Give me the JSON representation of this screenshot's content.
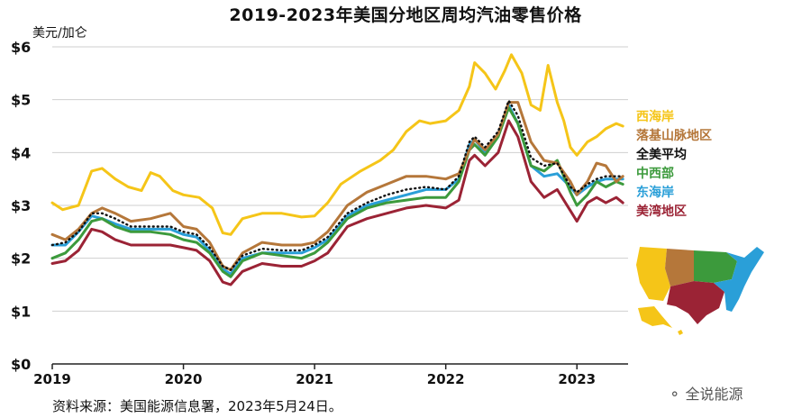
{
  "header": {
    "title": "2019-2023年美国分地区周均汽油零售价格"
  },
  "footer": {
    "source": "资料来源：美国能源信息署，2023年5月24日。",
    "watermark": "全说能源"
  },
  "colors": {
    "west_coast": "#f5c518",
    "rocky_mountain": "#b5773a",
    "us_average": "#111111",
    "midwest": "#3c9a3c",
    "east_coast": "#2a9fd8",
    "gulf_coast": "#9b2335"
  },
  "chart_data": {
    "type": "line",
    "title": "2019-2023年美国分地区周均汽油零售价格",
    "ylabel": "美元/加仑",
    "xlabel": "",
    "ylim": [
      0,
      6
    ],
    "xlim": [
      2019.0,
      2023.39
    ],
    "y_ticks": [
      "$0",
      "$1",
      "$2",
      "$3",
      "$4",
      "$5",
      "$6"
    ],
    "x_ticks": [
      "2019",
      "2020",
      "2021",
      "2022",
      "2023"
    ],
    "grid": "horizontal",
    "legend_position": "right",
    "series": [
      {
        "name": "西海岸",
        "color": "#f5c518",
        "dash": "solid",
        "x": [
          2019.0,
          2019.08,
          2019.2,
          2019.3,
          2019.38,
          2019.48,
          2019.58,
          2019.68,
          2019.75,
          2019.82,
          2019.92,
          2020.0,
          2020.12,
          2020.22,
          2020.3,
          2020.36,
          2020.45,
          2020.6,
          2020.75,
          2020.9,
          2021.0,
          2021.1,
          2021.2,
          2021.35,
          2021.5,
          2021.6,
          2021.7,
          2021.8,
          2021.88,
          2022.0,
          2022.1,
          2022.18,
          2022.22,
          2022.3,
          2022.38,
          2022.45,
          2022.5,
          2022.58,
          2022.65,
          2022.72,
          2022.78,
          2022.85,
          2022.9,
          2022.95,
          2023.0,
          2023.08,
          2023.15,
          2023.22,
          2023.3,
          2023.35
        ],
        "y": [
          3.05,
          2.92,
          3.0,
          3.65,
          3.7,
          3.5,
          3.35,
          3.28,
          3.62,
          3.55,
          3.28,
          3.2,
          3.15,
          2.95,
          2.48,
          2.45,
          2.75,
          2.85,
          2.85,
          2.78,
          2.8,
          3.05,
          3.4,
          3.65,
          3.85,
          4.05,
          4.4,
          4.6,
          4.55,
          4.6,
          4.8,
          5.25,
          5.7,
          5.5,
          5.2,
          5.55,
          5.85,
          5.5,
          4.9,
          4.8,
          5.65,
          4.95,
          4.6,
          4.1,
          3.95,
          4.2,
          4.3,
          4.45,
          4.55,
          4.5
        ]
      },
      {
        "name": "落基山脉地区",
        "color": "#b5773a",
        "dash": "solid",
        "x": [
          2019.0,
          2019.1,
          2019.2,
          2019.3,
          2019.38,
          2019.48,
          2019.6,
          2019.75,
          2019.9,
          2020.0,
          2020.1,
          2020.2,
          2020.3,
          2020.36,
          2020.45,
          2020.6,
          2020.75,
          2020.9,
          2021.0,
          2021.1,
          2021.25,
          2021.4,
          2021.55,
          2021.7,
          2021.85,
          2022.0,
          2022.1,
          2022.18,
          2022.22,
          2022.3,
          2022.4,
          2022.48,
          2022.55,
          2022.65,
          2022.75,
          2022.85,
          2022.95,
          2023.0,
          2023.08,
          2023.15,
          2023.22,
          2023.3,
          2023.35
        ],
        "y": [
          2.45,
          2.35,
          2.55,
          2.85,
          2.95,
          2.85,
          2.7,
          2.75,
          2.85,
          2.6,
          2.55,
          2.3,
          1.85,
          1.78,
          2.1,
          2.3,
          2.25,
          2.25,
          2.3,
          2.5,
          3.0,
          3.25,
          3.4,
          3.55,
          3.55,
          3.5,
          3.6,
          4.05,
          4.25,
          4.05,
          4.35,
          4.95,
          4.95,
          4.2,
          3.85,
          3.8,
          3.45,
          3.2,
          3.45,
          3.8,
          3.75,
          3.45,
          3.55
        ]
      },
      {
        "name": "全美平均",
        "color": "#111111",
        "dash": "dotted",
        "x": [
          2019.0,
          2019.1,
          2019.2,
          2019.3,
          2019.38,
          2019.48,
          2019.6,
          2019.75,
          2019.9,
          2020.0,
          2020.1,
          2020.2,
          2020.3,
          2020.36,
          2020.45,
          2020.6,
          2020.75,
          2020.9,
          2021.0,
          2021.1,
          2021.25,
          2021.4,
          2021.55,
          2021.7,
          2021.85,
          2022.0,
          2022.1,
          2022.18,
          2022.22,
          2022.3,
          2022.4,
          2022.48,
          2022.55,
          2022.65,
          2022.75,
          2022.85,
          2022.95,
          2023.0,
          2023.08,
          2023.15,
          2023.22,
          2023.3,
          2023.35
        ],
        "y": [
          2.25,
          2.3,
          2.5,
          2.85,
          2.85,
          2.75,
          2.6,
          2.6,
          2.6,
          2.5,
          2.45,
          2.2,
          1.85,
          1.78,
          2.05,
          2.18,
          2.15,
          2.15,
          2.25,
          2.4,
          2.85,
          3.05,
          3.2,
          3.3,
          3.35,
          3.3,
          3.55,
          4.2,
          4.3,
          4.1,
          4.4,
          4.98,
          4.7,
          3.9,
          3.75,
          3.8,
          3.35,
          3.25,
          3.4,
          3.5,
          3.55,
          3.55,
          3.55
        ]
      },
      {
        "name": "中西部",
        "color": "#3c9a3c",
        "dash": "solid",
        "x": [
          2019.0,
          2019.1,
          2019.2,
          2019.3,
          2019.38,
          2019.48,
          2019.6,
          2019.75,
          2019.9,
          2020.0,
          2020.1,
          2020.2,
          2020.3,
          2020.36,
          2020.45,
          2020.6,
          2020.75,
          2020.9,
          2021.0,
          2021.1,
          2021.25,
          2021.4,
          2021.55,
          2021.7,
          2021.85,
          2022.0,
          2022.1,
          2022.18,
          2022.22,
          2022.3,
          2022.4,
          2022.48,
          2022.55,
          2022.65,
          2022.75,
          2022.85,
          2022.95,
          2023.0,
          2023.08,
          2023.15,
          2023.22,
          2023.3,
          2023.35
        ],
        "y": [
          2.0,
          2.1,
          2.35,
          2.7,
          2.75,
          2.6,
          2.5,
          2.5,
          2.45,
          2.35,
          2.3,
          2.1,
          1.75,
          1.65,
          1.95,
          2.1,
          2.05,
          2.0,
          2.1,
          2.3,
          2.75,
          2.95,
          3.05,
          3.1,
          3.15,
          3.15,
          3.45,
          4.05,
          4.15,
          3.95,
          4.3,
          4.85,
          4.55,
          3.75,
          3.65,
          3.85,
          3.25,
          3.0,
          3.2,
          3.45,
          3.35,
          3.45,
          3.4
        ]
      },
      {
        "name": "东海岸",
        "color": "#2a9fd8",
        "dash": "solid",
        "x": [
          2019.0,
          2019.1,
          2019.2,
          2019.3,
          2019.38,
          2019.48,
          2019.6,
          2019.75,
          2019.9,
          2020.0,
          2020.1,
          2020.2,
          2020.3,
          2020.36,
          2020.45,
          2020.6,
          2020.75,
          2020.9,
          2021.0,
          2021.1,
          2021.25,
          2021.4,
          2021.55,
          2021.7,
          2021.85,
          2022.0,
          2022.1,
          2022.18,
          2022.22,
          2022.3,
          2022.4,
          2022.48,
          2022.55,
          2022.65,
          2022.75,
          2022.85,
          2022.95,
          2023.0,
          2023.08,
          2023.15,
          2023.22,
          2023.3,
          2023.35
        ],
        "y": [
          2.25,
          2.25,
          2.5,
          2.8,
          2.75,
          2.65,
          2.55,
          2.55,
          2.55,
          2.45,
          2.4,
          2.15,
          1.8,
          1.7,
          2.0,
          2.1,
          2.1,
          2.1,
          2.2,
          2.35,
          2.8,
          3.0,
          3.1,
          3.2,
          3.3,
          3.3,
          3.5,
          4.15,
          4.25,
          4.0,
          4.35,
          4.9,
          4.55,
          3.75,
          3.55,
          3.6,
          3.35,
          3.2,
          3.35,
          3.45,
          3.5,
          3.5,
          3.5
        ]
      },
      {
        "name": "美湾地区",
        "color": "#9b2335",
        "dash": "solid",
        "x": [
          2019.0,
          2019.1,
          2019.2,
          2019.3,
          2019.38,
          2019.48,
          2019.6,
          2019.75,
          2019.9,
          2020.0,
          2020.1,
          2020.2,
          2020.3,
          2020.36,
          2020.45,
          2020.6,
          2020.75,
          2020.9,
          2021.0,
          2021.1,
          2021.25,
          2021.4,
          2021.55,
          2021.7,
          2021.85,
          2022.0,
          2022.1,
          2022.18,
          2022.22,
          2022.3,
          2022.4,
          2022.48,
          2022.55,
          2022.65,
          2022.75,
          2022.85,
          2022.95,
          2023.0,
          2023.08,
          2023.15,
          2023.22,
          2023.3,
          2023.35
        ],
        "y": [
          1.9,
          1.95,
          2.15,
          2.55,
          2.5,
          2.35,
          2.25,
          2.25,
          2.25,
          2.2,
          2.15,
          1.95,
          1.55,
          1.5,
          1.75,
          1.9,
          1.85,
          1.85,
          1.95,
          2.1,
          2.6,
          2.75,
          2.85,
          2.95,
          3.0,
          2.95,
          3.1,
          3.85,
          3.95,
          3.75,
          4.0,
          4.6,
          4.3,
          3.45,
          3.15,
          3.3,
          2.9,
          2.7,
          3.05,
          3.15,
          3.05,
          3.15,
          3.05
        ]
      }
    ]
  }
}
